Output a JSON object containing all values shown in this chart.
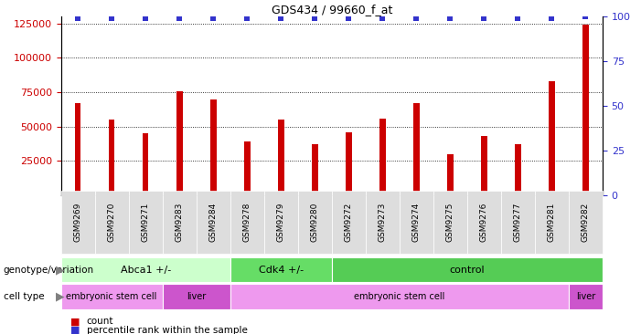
{
  "title": "GDS434 / 99660_f_at",
  "samples": [
    "GSM9269",
    "GSM9270",
    "GSM9271",
    "GSM9283",
    "GSM9284",
    "GSM9278",
    "GSM9279",
    "GSM9280",
    "GSM9272",
    "GSM9273",
    "GSM9274",
    "GSM9275",
    "GSM9276",
    "GSM9277",
    "GSM9281",
    "GSM9282"
  ],
  "counts": [
    67000,
    55000,
    45000,
    76000,
    70000,
    39000,
    55000,
    37000,
    46000,
    56000,
    67000,
    30000,
    43000,
    37000,
    83000,
    124000
  ],
  "percentile_ranks": [
    99,
    99,
    99,
    99,
    99,
    99,
    99,
    99,
    99,
    99,
    99,
    99,
    99,
    99,
    99,
    100
  ],
  "bar_color": "#cc0000",
  "dot_color": "#3333cc",
  "ylim_left": [
    0,
    130000
  ],
  "ylim_right": [
    0,
    100
  ],
  "yticks_left": [
    25000,
    50000,
    75000,
    100000,
    125000
  ],
  "yticks_right": [
    0,
    25,
    50,
    75,
    100
  ],
  "genotype_groups": [
    {
      "label": "Abca1 +/-",
      "start": 0,
      "end": 5,
      "color": "#ccffcc"
    },
    {
      "label": "Cdk4 +/-",
      "start": 5,
      "end": 8,
      "color": "#66dd66"
    },
    {
      "label": "control",
      "start": 8,
      "end": 16,
      "color": "#55cc55"
    }
  ],
  "celltype_groups": [
    {
      "label": "embryonic stem cell",
      "start": 0,
      "end": 3,
      "color": "#ee99ee"
    },
    {
      "label": "liver",
      "start": 3,
      "end": 5,
      "color": "#cc55cc"
    },
    {
      "label": "embryonic stem cell",
      "start": 5,
      "end": 15,
      "color": "#ee99ee"
    },
    {
      "label": "liver",
      "start": 15,
      "end": 16,
      "color": "#cc55cc"
    }
  ],
  "axis_color_left": "#cc0000",
  "axis_color_right": "#3333cc",
  "background_color": "#ffffff"
}
